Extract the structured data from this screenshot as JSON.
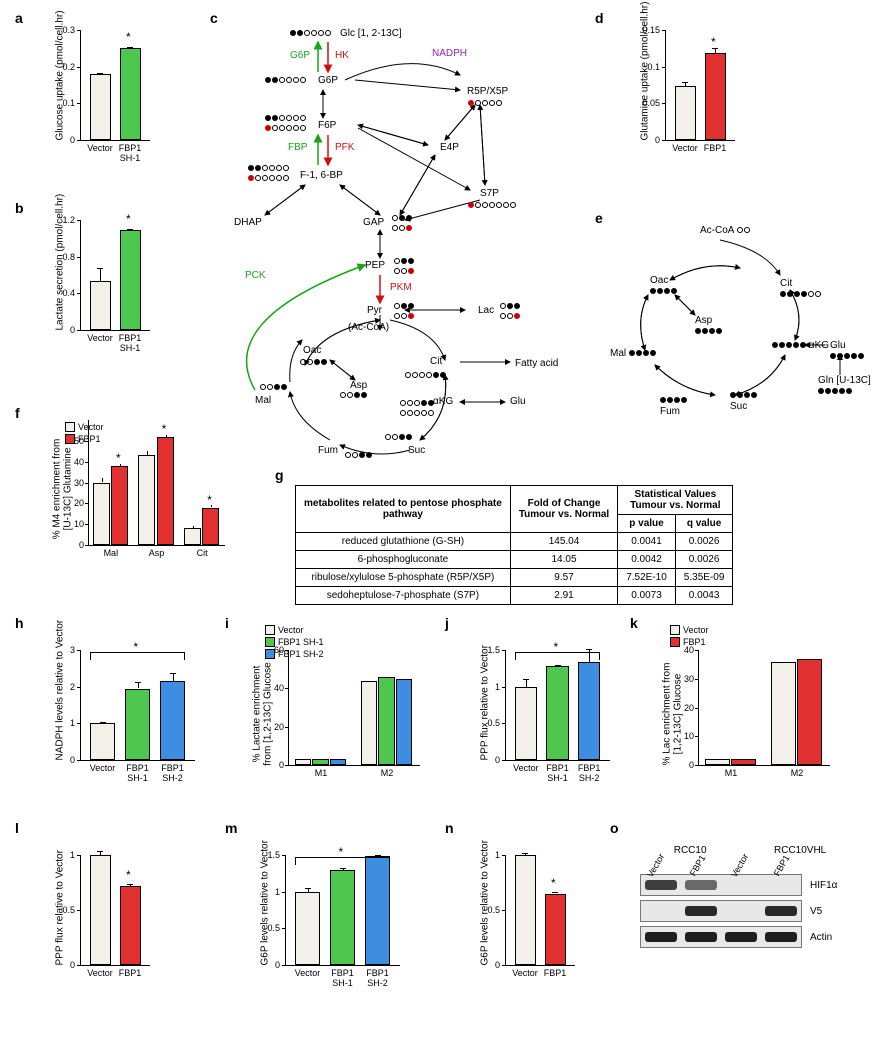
{
  "colors": {
    "vector": "#f2f0e8",
    "green": "#4dc74d",
    "blue": "#3d8ee0",
    "red": "#e03030",
    "text_green": "#1aa31a",
    "text_red": "#d01010",
    "text_purple": "#9020c0"
  },
  "fonts": {
    "label": 14,
    "axis": 10,
    "tick": 9
  },
  "panels": {
    "a": {
      "label": "a",
      "ylabel": "Glucose uptake (pmol/cell.hr)",
      "ylim": [
        0,
        0.3
      ],
      "yticks": [
        0,
        0.1,
        0.2,
        0.3
      ],
      "categories": [
        "Vector",
        "FBP1\nSH-1"
      ],
      "values": [
        0.18,
        0.25
      ],
      "errors": [
        0.003,
        0.003
      ],
      "colors": [
        "#f2f0e8",
        "#4dc74d"
      ],
      "starred": [
        false,
        true
      ]
    },
    "b": {
      "label": "b",
      "ylabel": "Lactate secretion (pmol/cell.hr)",
      "ylim": [
        0,
        1.2
      ],
      "yticks": [
        0,
        0.4,
        0.8,
        1.2
      ],
      "categories": [
        "Vector",
        "FBP1\nSH-1"
      ],
      "values": [
        0.53,
        1.09
      ],
      "errors": [
        0.15,
        0.01
      ],
      "colors": [
        "#f2f0e8",
        "#4dc74d"
      ],
      "starred": [
        false,
        true
      ]
    },
    "d": {
      "label": "d",
      "ylabel": "Glutamine uptake (pmol/cell.hr)",
      "ylim": [
        0,
        0.15
      ],
      "yticks": [
        0,
        0.05,
        0.1,
        0.15
      ],
      "categories": [
        "Vector",
        "FBP1"
      ],
      "values": [
        0.073,
        0.119
      ],
      "errors": [
        0.006,
        0.006
      ],
      "colors": [
        "#f2f0e8",
        "#e03030"
      ],
      "starred": [
        false,
        true
      ]
    },
    "f": {
      "label": "f",
      "ylabel": "% M4 enrichment from\n[U-13C] Glutamine",
      "ylim": [
        0,
        60
      ],
      "yticks": [
        0,
        10,
        20,
        30,
        40,
        50
      ],
      "categories": [
        "Mal",
        "Asp",
        "Cit"
      ],
      "series": [
        {
          "name": "Vector",
          "values": [
            30,
            43,
            8
          ],
          "errors": [
            2,
            2,
            1
          ],
          "color": "#f2f0e8"
        },
        {
          "name": "FBP1",
          "values": [
            38,
            52,
            18
          ],
          "errors": [
            1,
            1,
            1
          ],
          "color": "#e03030"
        }
      ],
      "starred_series2": [
        true,
        true,
        true
      ]
    },
    "h": {
      "label": "h",
      "ylabel": "NADPH levels\nrelative to Vector",
      "ylim": [
        0,
        3
      ],
      "yticks": [
        0,
        1,
        2,
        3
      ],
      "categories": [
        "Vector",
        "FBP1\nSH-1",
        "FBP1\nSH-2"
      ],
      "values": [
        1.0,
        1.95,
        2.15
      ],
      "errors": [
        0.05,
        0.18,
        0.22
      ],
      "colors": [
        "#f2f0e8",
        "#4dc74d",
        "#3d8ee0"
      ],
      "star_bracket": {
        "from": 0,
        "to": 2
      }
    },
    "i": {
      "label": "i",
      "ylabel": "% Lactate enrichment\nfrom [1,2-13C] Glucose",
      "ylim": [
        0,
        60
      ],
      "yticks": [
        0,
        20,
        40,
        60
      ],
      "groups": [
        "M1",
        "M2"
      ],
      "series": [
        {
          "name": "Vector",
          "values": [
            3,
            44
          ],
          "color": "#f2f0e8"
        },
        {
          "name": "FBP1 SH-1",
          "values": [
            3,
            46
          ],
          "color": "#4dc74d"
        },
        {
          "name": "FBP1 SH-2",
          "values": [
            3,
            45
          ],
          "color": "#3d8ee0"
        }
      ]
    },
    "j": {
      "label": "j",
      "ylabel": "PPP flux relative to Vector",
      "ylim": [
        0,
        1.5
      ],
      "yticks": [
        0,
        0.5,
        1.0,
        1.5
      ],
      "categories": [
        "Vector",
        "FBP1\nSH-1",
        "FBP1\nSH-2"
      ],
      "values": [
        1.0,
        1.28,
        1.33
      ],
      "errors": [
        0.1,
        0.02,
        0.18
      ],
      "colors": [
        "#f2f0e8",
        "#4dc74d",
        "#3d8ee0"
      ],
      "star_bracket": {
        "from": 0,
        "to": 2
      }
    },
    "k": {
      "label": "k",
      "ylabel": "% Lac enrichment from\n[1,2-13C] Glucose",
      "ylim": [
        0,
        40
      ],
      "yticks": [
        0,
        10,
        20,
        30,
        40
      ],
      "groups": [
        "M1",
        "M2"
      ],
      "series": [
        {
          "name": "Vector",
          "values": [
            2,
            36
          ],
          "color": "#f2f0e8"
        },
        {
          "name": "FBP1",
          "values": [
            2,
            37
          ],
          "color": "#e03030"
        }
      ]
    },
    "l": {
      "label": "l",
      "ylabel": "PPP flux relative to Vector",
      "ylim": [
        0,
        1.0
      ],
      "yticks": [
        0,
        0.5,
        1.0
      ],
      "categories": [
        "Vector",
        "FBP1"
      ],
      "values": [
        1.0,
        0.72
      ],
      "errors": [
        0.04,
        0.02
      ],
      "colors": [
        "#f2f0e8",
        "#e03030"
      ],
      "starred": [
        false,
        true
      ]
    },
    "m": {
      "label": "m",
      "ylabel": "G6P levels relative to Vector",
      "ylim": [
        0,
        1.5
      ],
      "yticks": [
        0,
        0.5,
        1.0,
        1.5
      ],
      "categories": [
        "Vector",
        "FBP1\nSH-1",
        "FBP1\nSH-2"
      ],
      "values": [
        1.0,
        1.3,
        1.48
      ],
      "errors": [
        0.05,
        0.02,
        0.02
      ],
      "colors": [
        "#f2f0e8",
        "#4dc74d",
        "#3d8ee0"
      ],
      "star_bracket": {
        "from": 0,
        "to": 2
      }
    },
    "n": {
      "label": "n",
      "ylabel": "G6P levels relative to Vector",
      "ylim": [
        0,
        1.0
      ],
      "yticks": [
        0,
        0.5,
        1.0
      ],
      "categories": [
        "Vector",
        "FBP1"
      ],
      "values": [
        1.0,
        0.65
      ],
      "errors": [
        0.02,
        0.01
      ],
      "colors": [
        "#f2f0e8",
        "#e03030"
      ],
      "starred": [
        false,
        true
      ]
    }
  },
  "diagram_c": {
    "label": "c",
    "nodes": [
      "Glc [1, 2-13C]",
      "G6P",
      "F6P",
      "F-1, 6-BP",
      "DHAP",
      "GAP",
      "PEP",
      "Pyr",
      "(Ac-CoA)",
      "Lac",
      "R5P/X5P",
      "E4P",
      "S7P",
      "Oac",
      "Cit",
      "Asp",
      "αKG",
      "Glu",
      "Mal",
      "Fum",
      "Suc",
      "Fatty acid",
      "NADPH"
    ],
    "enzymes_green": [
      "G6P",
      "FBP",
      "PCK"
    ],
    "enzymes_red": [
      "HK",
      "PFK",
      "PKM"
    ]
  },
  "diagram_e": {
    "label": "e",
    "nodes": [
      "Ac-CoA",
      "Oac",
      "Cit",
      "Asp",
      "αKG",
      "Glu",
      "Gln [U-13C]",
      "Mal",
      "Fum",
      "Suc"
    ]
  },
  "table_g": {
    "label": "g",
    "headers": [
      "metabolites related to pentose phosphate\npathway",
      "Fold of Change\nTumour vs. Normal",
      "Statistical Values\nTumour vs. Normal"
    ],
    "subheaders": [
      "",
      "",
      "p value",
      "q value"
    ],
    "rows": [
      [
        "reduced glutathione (G-SH)",
        "145.04",
        "0.0041",
        "0.0026"
      ],
      [
        "6-phosphogluconate",
        "14.05",
        "0.0042",
        "0.0026"
      ],
      [
        "ribulose/xylulose 5-phosphate (R5P/X5P)",
        "9.57",
        "7.52E-10",
        "5.35E-09"
      ],
      [
        "sedoheptulose-7-phosphate (S7P)",
        "2.91",
        "0.0073",
        "0.0043"
      ]
    ]
  },
  "western_o": {
    "label": "o",
    "groups": [
      "RCC10",
      "RCC10VHL"
    ],
    "lanes": [
      "Vector",
      "FBP1",
      "Vector",
      "FBP1"
    ],
    "targets": [
      "HIF1α",
      "V5",
      "Actin"
    ],
    "band_intensity": {
      "HIF1α": [
        0.8,
        0.6,
        0.05,
        0.05
      ],
      "V5": [
        0.0,
        0.9,
        0.0,
        0.9
      ],
      "Actin": [
        0.95,
        0.95,
        0.95,
        0.95
      ]
    }
  }
}
